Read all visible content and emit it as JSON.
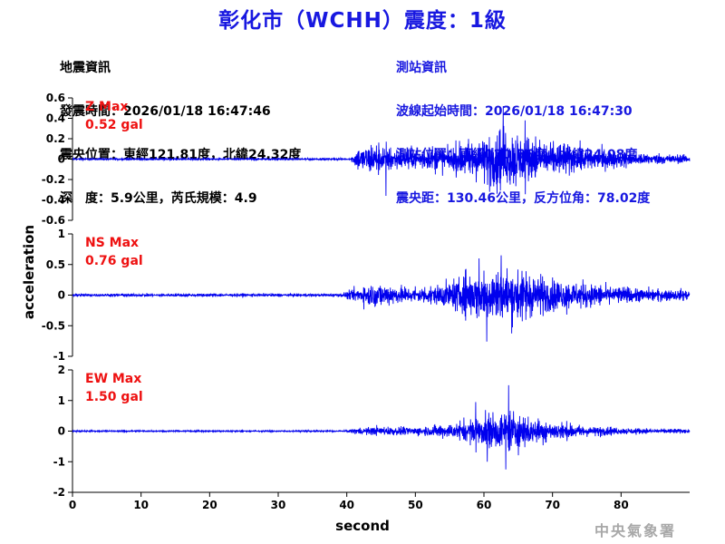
{
  "title": "彰化市（WCHH）震度：1級",
  "quake_info": {
    "heading": "地震資訊",
    "time": "發震時間：2026/01/18 16:47:46",
    "location": "震央位置：東經121.81度，北緯24.32度",
    "depth_magnitude": "深　度：5.9公里，芮氏規模：4.9"
  },
  "station_info": {
    "heading": "測站資訊",
    "wave_start": "波線起始時間：2026/01/18 16:47:30",
    "location": "測站位置：東經120.56度，北緯24.08度",
    "distance_azimuth": "震央距：130.46公里，反方位角：78.02度"
  },
  "agency": "中央氣象署",
  "colors": {
    "title": "#1818e0",
    "trace": "#0000ee",
    "max_label": "#ee1111",
    "station_info": "#1818e0"
  },
  "chart_data": {
    "type": "line",
    "xlabel": "second",
    "ylabel": "acceleration",
    "xlim": [
      0,
      90
    ],
    "xticks": [
      0,
      10,
      20,
      30,
      40,
      50,
      60,
      70,
      80
    ],
    "grid": false,
    "panels": [
      {
        "name": "Z",
        "max_label": "Z Max",
        "max_value": "0.52 gal",
        "ylim": [
          -0.6,
          0.6
        ],
        "yticks": [
          0.6,
          0.4,
          0.2,
          0,
          -0.2,
          -0.4,
          -0.6
        ],
        "ytick_labels": [
          "0.6",
          "0.4",
          "0.2",
          "0",
          "-0.2",
          "-0.4",
          "-0.6"
        ],
        "noise": 0.012,
        "envelope": [
          [
            0,
            0.012
          ],
          [
            40.5,
            0.012
          ],
          [
            41.5,
            0.12
          ],
          [
            44,
            0.2
          ],
          [
            46,
            0.14
          ],
          [
            50,
            0.12
          ],
          [
            55,
            0.14
          ],
          [
            58,
            0.25
          ],
          [
            61,
            0.3
          ],
          [
            64,
            0.35
          ],
          [
            66,
            0.28
          ],
          [
            70,
            0.2
          ],
          [
            75,
            0.14
          ],
          [
            80,
            0.1
          ],
          [
            85,
            0.06
          ],
          [
            90,
            0.05
          ]
        ],
        "peaks": [
          [
            45.7,
            -0.36
          ],
          [
            62.8,
            0.52
          ],
          [
            61.9,
            -0.34
          ],
          [
            66,
            0.38
          ]
        ]
      },
      {
        "name": "NS",
        "max_label": "NS Max",
        "max_value": "0.76 gal",
        "ylim": [
          -1,
          1
        ],
        "yticks": [
          1,
          0.5,
          0,
          -0.5,
          -1
        ],
        "ytick_labels": [
          "1",
          "0.5",
          "0",
          "-0.5",
          "-1"
        ],
        "noise": 0.03,
        "envelope": [
          [
            0,
            0.03
          ],
          [
            39,
            0.03
          ],
          [
            41,
            0.12
          ],
          [
            44,
            0.25
          ],
          [
            48,
            0.17
          ],
          [
            52,
            0.18
          ],
          [
            55,
            0.28
          ],
          [
            58,
            0.42
          ],
          [
            61,
            0.5
          ],
          [
            64,
            0.52
          ],
          [
            67,
            0.45
          ],
          [
            70,
            0.33
          ],
          [
            75,
            0.25
          ],
          [
            80,
            0.16
          ],
          [
            85,
            0.12
          ],
          [
            90,
            0.1
          ]
        ],
        "peaks": [
          [
            60.4,
            -0.76
          ],
          [
            62.5,
            0.65
          ],
          [
            59.3,
            0.6
          ]
        ]
      },
      {
        "name": "EW",
        "max_label": "EW Max",
        "max_value": "1.50 gal",
        "ylim": [
          -2,
          2
        ],
        "yticks": [
          2,
          1,
          0,
          -1,
          -2
        ],
        "ytick_labels": [
          "2",
          "1",
          "0",
          "-1",
          "-2"
        ],
        "noise": 0.03,
        "envelope": [
          [
            0,
            0.03
          ],
          [
            40,
            0.03
          ],
          [
            41,
            0.12
          ],
          [
            45,
            0.18
          ],
          [
            50,
            0.16
          ],
          [
            55,
            0.3
          ],
          [
            58,
            0.45
          ],
          [
            61,
            0.7
          ],
          [
            64,
            0.8
          ],
          [
            67,
            0.55
          ],
          [
            70,
            0.38
          ],
          [
            75,
            0.22
          ],
          [
            80,
            0.13
          ],
          [
            85,
            0.1
          ],
          [
            90,
            0.08
          ]
        ],
        "peaks": [
          [
            63.6,
            1.5
          ],
          [
            63.2,
            -1.25
          ],
          [
            58.8,
            0.95
          ],
          [
            60.5,
            -1.0
          ]
        ]
      }
    ]
  }
}
